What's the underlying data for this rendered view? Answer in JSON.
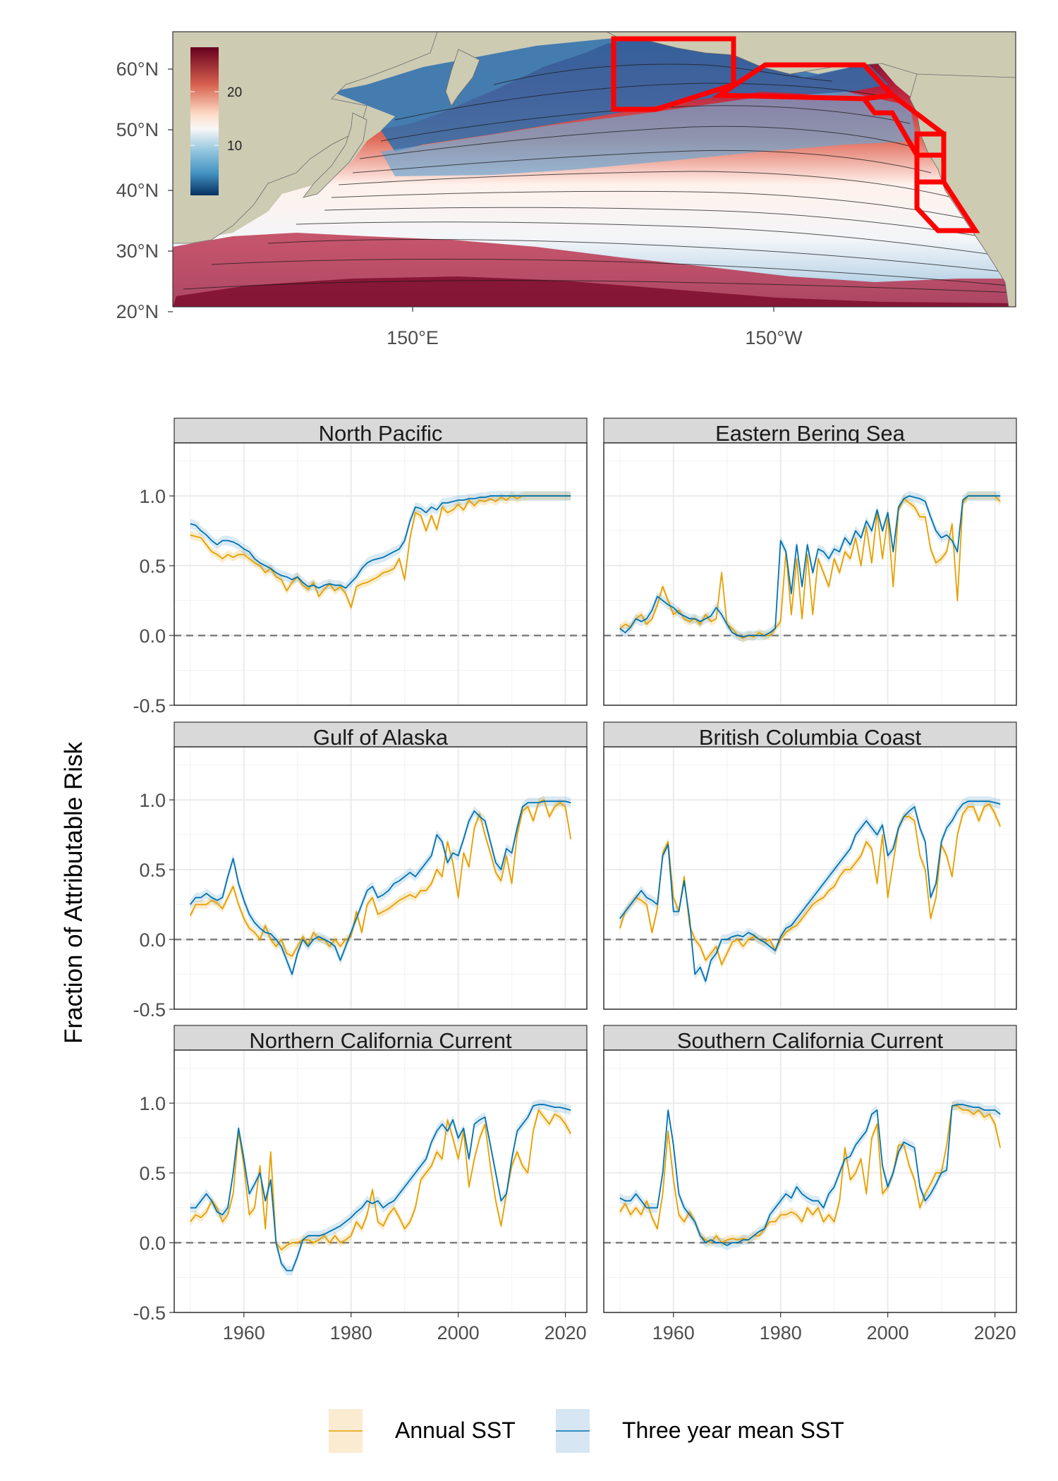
{
  "map": {
    "lat_labels": [
      "60°N",
      "50°N",
      "40°N",
      "30°N",
      "20°N"
    ],
    "lon_labels": [
      "150°E",
      "150°W"
    ],
    "colorbar_ticks": [
      "20",
      "10"
    ],
    "colors": {
      "land": "#cdcbb2",
      "warm": "#67001f",
      "cool": "#053061",
      "region_outline": "#ff0000"
    }
  },
  "chart_data": {
    "type": "line",
    "ylabel": "Fraction of Attributable Risk",
    "xlim": [
      1947,
      2024
    ],
    "ylim": [
      -0.5,
      1.0
    ],
    "x_ticks": [
      1960,
      1980,
      2000,
      2020
    ],
    "y_ticks": [
      -0.5,
      0.0,
      0.5,
      1.0
    ],
    "y_tick_labels": [
      "-0.5",
      "0.0",
      "0.5",
      "1.0"
    ],
    "reference_line": 0.0,
    "grid": true,
    "legend": {
      "position": "bottom",
      "entries": [
        {
          "label": "Annual SST",
          "color": "#e69f00"
        },
        {
          "label": "Three year mean SST",
          "color": "#0072b2"
        }
      ]
    },
    "start_year": 1950,
    "panels": [
      {
        "title": "North Pacific",
        "annual": [
          0.72,
          0.71,
          0.7,
          0.65,
          0.6,
          0.58,
          0.55,
          0.58,
          0.56,
          0.58,
          0.58,
          0.55,
          0.52,
          0.5,
          0.45,
          0.48,
          0.42,
          0.4,
          0.32,
          0.38,
          0.42,
          0.36,
          0.33,
          0.38,
          0.28,
          0.33,
          0.37,
          0.32,
          0.35,
          0.3,
          0.2,
          0.35,
          0.37,
          0.38,
          0.4,
          0.42,
          0.45,
          0.46,
          0.48,
          0.55,
          0.4,
          0.7,
          0.88,
          0.86,
          0.75,
          0.86,
          0.76,
          0.92,
          0.88,
          0.9,
          0.94,
          0.9,
          0.97,
          0.93,
          0.97,
          0.96,
          0.98,
          0.96,
          0.99,
          0.97,
          1.0,
          0.98,
          1.0,
          1.0,
          1.0,
          1.0,
          1.0,
          1.0,
          1.0,
          1.0,
          1.0,
          1.0
        ],
        "three_year": [
          0.8,
          0.79,
          0.75,
          0.72,
          0.68,
          0.65,
          0.68,
          0.68,
          0.67,
          0.65,
          0.62,
          0.6,
          0.55,
          0.52,
          0.5,
          0.48,
          0.45,
          0.43,
          0.42,
          0.4,
          0.42,
          0.38,
          0.35,
          0.36,
          0.34,
          0.36,
          0.37,
          0.36,
          0.36,
          0.34,
          0.38,
          0.42,
          0.48,
          0.52,
          0.54,
          0.55,
          0.56,
          0.58,
          0.6,
          0.62,
          0.68,
          0.82,
          0.92,
          0.91,
          0.88,
          0.92,
          0.9,
          0.95,
          0.95,
          0.96,
          0.97,
          0.97,
          0.98,
          0.98,
          0.99,
          0.99,
          1.0,
          1.0,
          1.0,
          1.0,
          1.0,
          1.0,
          1.0,
          1.0,
          1.0,
          1.0,
          1.0,
          1.0,
          1.0,
          1.0,
          1.0,
          1.0
        ]
      },
      {
        "title": "Eastern Bering Sea",
        "annual": [
          0.05,
          0.08,
          0.06,
          0.12,
          0.15,
          0.08,
          0.12,
          0.22,
          0.35,
          0.25,
          0.15,
          0.18,
          0.12,
          0.1,
          0.12,
          0.08,
          0.15,
          0.1,
          0.12,
          0.45,
          0.08,
          0.05,
          0.0,
          -0.02,
          0.0,
          -0.01,
          0.02,
          0.0,
          0.0,
          0.05,
          0.1,
          0.6,
          0.15,
          0.55,
          0.12,
          0.58,
          0.15,
          0.55,
          0.45,
          0.35,
          0.55,
          0.45,
          0.6,
          0.55,
          0.7,
          0.5,
          0.78,
          0.52,
          0.88,
          0.55,
          0.85,
          0.35,
          0.9,
          0.98,
          0.95,
          0.92,
          0.85,
          0.85,
          0.62,
          0.52,
          0.55,
          0.6,
          0.8,
          0.25,
          0.95,
          1.0,
          1.0,
          1.0,
          1.0,
          1.0,
          1.0,
          0.96
        ],
        "three_year": [
          0.05,
          0.02,
          0.06,
          0.12,
          0.1,
          0.12,
          0.18,
          0.28,
          0.25,
          0.22,
          0.2,
          0.16,
          0.14,
          0.12,
          0.12,
          0.1,
          0.12,
          0.14,
          0.2,
          0.15,
          0.08,
          0.02,
          0.0,
          -0.01,
          0.0,
          0.0,
          0.0,
          0.0,
          0.02,
          0.05,
          0.68,
          0.6,
          0.3,
          0.65,
          0.35,
          0.65,
          0.45,
          0.62,
          0.6,
          0.55,
          0.62,
          0.6,
          0.7,
          0.65,
          0.75,
          0.7,
          0.82,
          0.75,
          0.9,
          0.75,
          0.88,
          0.6,
          0.92,
          0.98,
          1.0,
          0.99,
          0.98,
          0.96,
          0.85,
          0.75,
          0.7,
          0.72,
          0.68,
          0.6,
          0.97,
          1.0,
          1.0,
          1.0,
          1.0,
          1.0,
          1.0,
          1.0
        ]
      },
      {
        "title": "Gulf of Alaska",
        "annual": [
          0.17,
          0.25,
          0.25,
          0.25,
          0.28,
          0.26,
          0.22,
          0.3,
          0.38,
          0.25,
          0.15,
          0.08,
          0.05,
          0.0,
          0.1,
          0.0,
          -0.05,
          0.0,
          -0.1,
          -0.12,
          -0.05,
          0.02,
          -0.04,
          0.05,
          0.0,
          0.0,
          -0.05,
          0.0,
          -0.05,
          0.0,
          0.02,
          0.2,
          0.05,
          0.25,
          0.3,
          0.18,
          0.2,
          0.22,
          0.25,
          0.28,
          0.3,
          0.32,
          0.3,
          0.35,
          0.35,
          0.4,
          0.5,
          0.45,
          0.7,
          0.55,
          0.3,
          0.62,
          0.52,
          0.8,
          0.9,
          0.75,
          0.62,
          0.48,
          0.42,
          0.6,
          0.4,
          0.75,
          0.92,
          0.95,
          0.85,
          0.98,
          1.0,
          0.88,
          0.95,
          0.98,
          0.95,
          0.72
        ],
        "three_year": [
          0.25,
          0.3,
          0.3,
          0.33,
          0.3,
          0.28,
          0.3,
          0.45,
          0.58,
          0.4,
          0.28,
          0.18,
          0.12,
          0.08,
          0.05,
          0.04,
          0.0,
          -0.05,
          -0.15,
          -0.25,
          -0.1,
          0.0,
          -0.05,
          0.0,
          0.02,
          0.0,
          -0.02,
          -0.05,
          -0.15,
          -0.05,
          0.05,
          0.15,
          0.25,
          0.35,
          0.38,
          0.3,
          0.32,
          0.35,
          0.4,
          0.42,
          0.45,
          0.48,
          0.45,
          0.5,
          0.55,
          0.6,
          0.75,
          0.7,
          0.55,
          0.62,
          0.6,
          0.72,
          0.85,
          0.92,
          0.88,
          0.85,
          0.7,
          0.55,
          0.5,
          0.65,
          0.62,
          0.8,
          0.95,
          0.98,
          0.98,
          0.98,
          0.99,
          0.99,
          0.99,
          0.99,
          0.99,
          0.98
        ]
      },
      {
        "title": "British Columbia Coast",
        "annual": [
          0.08,
          0.2,
          0.25,
          0.3,
          0.28,
          0.25,
          0.05,
          0.22,
          0.62,
          0.7,
          0.3,
          0.2,
          0.45,
          0.1,
          0.0,
          -0.05,
          -0.15,
          -0.1,
          -0.05,
          -0.18,
          -0.1,
          -0.02,
          0.0,
          -0.05,
          0.0,
          0.02,
          0.0,
          -0.02,
          0.0,
          -0.08,
          0.0,
          0.05,
          0.08,
          0.1,
          0.15,
          0.2,
          0.25,
          0.28,
          0.3,
          0.35,
          0.38,
          0.45,
          0.5,
          0.5,
          0.55,
          0.6,
          0.7,
          0.65,
          0.4,
          0.75,
          0.3,
          0.55,
          0.8,
          0.88,
          0.88,
          0.85,
          0.6,
          0.5,
          0.15,
          0.3,
          0.68,
          0.6,
          0.45,
          0.75,
          0.9,
          0.95,
          0.95,
          0.85,
          0.95,
          0.97,
          0.9,
          0.81
        ],
        "three_year": [
          0.15,
          0.2,
          0.25,
          0.3,
          0.35,
          0.3,
          0.28,
          0.25,
          0.6,
          0.68,
          0.2,
          0.2,
          0.42,
          0.15,
          -0.25,
          -0.2,
          -0.3,
          -0.15,
          -0.1,
          0.0,
          0.0,
          0.02,
          0.03,
          0.02,
          0.05,
          0.03,
          0.0,
          -0.02,
          -0.05,
          -0.08,
          0.02,
          0.08,
          0.1,
          0.15,
          0.2,
          0.25,
          0.3,
          0.35,
          0.4,
          0.45,
          0.5,
          0.55,
          0.6,
          0.65,
          0.75,
          0.8,
          0.85,
          0.8,
          0.75,
          0.82,
          0.6,
          0.65,
          0.8,
          0.88,
          0.92,
          0.95,
          0.8,
          0.7,
          0.3,
          0.4,
          0.7,
          0.8,
          0.85,
          0.92,
          0.97,
          0.99,
          0.99,
          0.99,
          0.99,
          0.99,
          0.98,
          0.97
        ]
      },
      {
        "title": "Northern California Current",
        "annual": [
          0.15,
          0.2,
          0.18,
          0.22,
          0.3,
          0.25,
          0.15,
          0.2,
          0.35,
          0.8,
          0.55,
          0.2,
          0.25,
          0.55,
          0.1,
          0.65,
          0.0,
          -0.05,
          -0.02,
          0.0,
          0.0,
          0.02,
          0.02,
          0.0,
          0.02,
          0.05,
          0.0,
          0.05,
          0.0,
          0.02,
          0.05,
          0.15,
          0.1,
          0.2,
          0.38,
          0.15,
          0.12,
          0.2,
          0.25,
          0.18,
          0.1,
          0.15,
          0.25,
          0.45,
          0.5,
          0.55,
          0.65,
          0.6,
          0.88,
          0.75,
          0.6,
          0.8,
          0.4,
          0.6,
          0.75,
          0.85,
          0.55,
          0.3,
          0.12,
          0.35,
          0.55,
          0.65,
          0.55,
          0.5,
          0.8,
          0.95,
          0.9,
          0.85,
          0.92,
          0.9,
          0.85,
          0.78
        ],
        "three_year": [
          0.25,
          0.25,
          0.3,
          0.35,
          0.3,
          0.22,
          0.2,
          0.25,
          0.5,
          0.82,
          0.6,
          0.35,
          0.42,
          0.5,
          0.3,
          0.45,
          0.0,
          -0.15,
          -0.2,
          -0.2,
          -0.1,
          0.02,
          0.05,
          0.05,
          0.05,
          0.06,
          0.08,
          0.1,
          0.12,
          0.15,
          0.18,
          0.22,
          0.25,
          0.3,
          0.28,
          0.3,
          0.25,
          0.28,
          0.3,
          0.35,
          0.4,
          0.45,
          0.5,
          0.55,
          0.6,
          0.72,
          0.8,
          0.85,
          0.8,
          0.88,
          0.75,
          0.82,
          0.6,
          0.85,
          0.88,
          0.9,
          0.7,
          0.5,
          0.3,
          0.35,
          0.6,
          0.8,
          0.85,
          0.9,
          0.98,
          0.99,
          0.99,
          0.98,
          0.97,
          0.97,
          0.96,
          0.95
        ]
      },
      {
        "title": "Southern California Current",
        "annual": [
          0.22,
          0.28,
          0.2,
          0.25,
          0.2,
          0.3,
          0.18,
          0.1,
          0.35,
          0.8,
          0.45,
          0.2,
          0.15,
          0.22,
          0.15,
          0.05,
          0.02,
          0.0,
          0.05,
          0.0,
          0.02,
          0.03,
          0.02,
          0.03,
          0.02,
          0.05,
          0.05,
          0.1,
          0.15,
          0.15,
          0.2,
          0.2,
          0.22,
          0.2,
          0.15,
          0.25,
          0.2,
          0.25,
          0.15,
          0.2,
          0.15,
          0.3,
          0.68,
          0.45,
          0.5,
          0.6,
          0.35,
          0.75,
          0.85,
          0.35,
          0.4,
          0.5,
          0.7,
          0.7,
          0.55,
          0.45,
          0.25,
          0.35,
          0.42,
          0.5,
          0.5,
          0.7,
          0.98,
          0.98,
          0.95,
          0.95,
          0.92,
          0.95,
          0.9,
          0.92,
          0.85,
          0.68
        ],
        "three_year": [
          0.32,
          0.3,
          0.3,
          0.35,
          0.3,
          0.25,
          0.25,
          0.25,
          0.5,
          0.95,
          0.7,
          0.35,
          0.25,
          0.2,
          0.15,
          0.05,
          0.0,
          0.02,
          0.0,
          0.0,
          -0.02,
          0.0,
          0.0,
          0.02,
          0.02,
          0.05,
          0.08,
          0.1,
          0.2,
          0.25,
          0.3,
          0.35,
          0.32,
          0.4,
          0.35,
          0.32,
          0.3,
          0.3,
          0.25,
          0.35,
          0.4,
          0.5,
          0.6,
          0.62,
          0.7,
          0.75,
          0.8,
          0.92,
          0.95,
          0.55,
          0.4,
          0.5,
          0.65,
          0.72,
          0.7,
          0.68,
          0.4,
          0.3,
          0.35,
          0.42,
          0.5,
          0.52,
          0.98,
          0.99,
          0.99,
          0.98,
          0.97,
          0.97,
          0.95,
          0.95,
          0.95,
          0.92
        ]
      }
    ]
  }
}
